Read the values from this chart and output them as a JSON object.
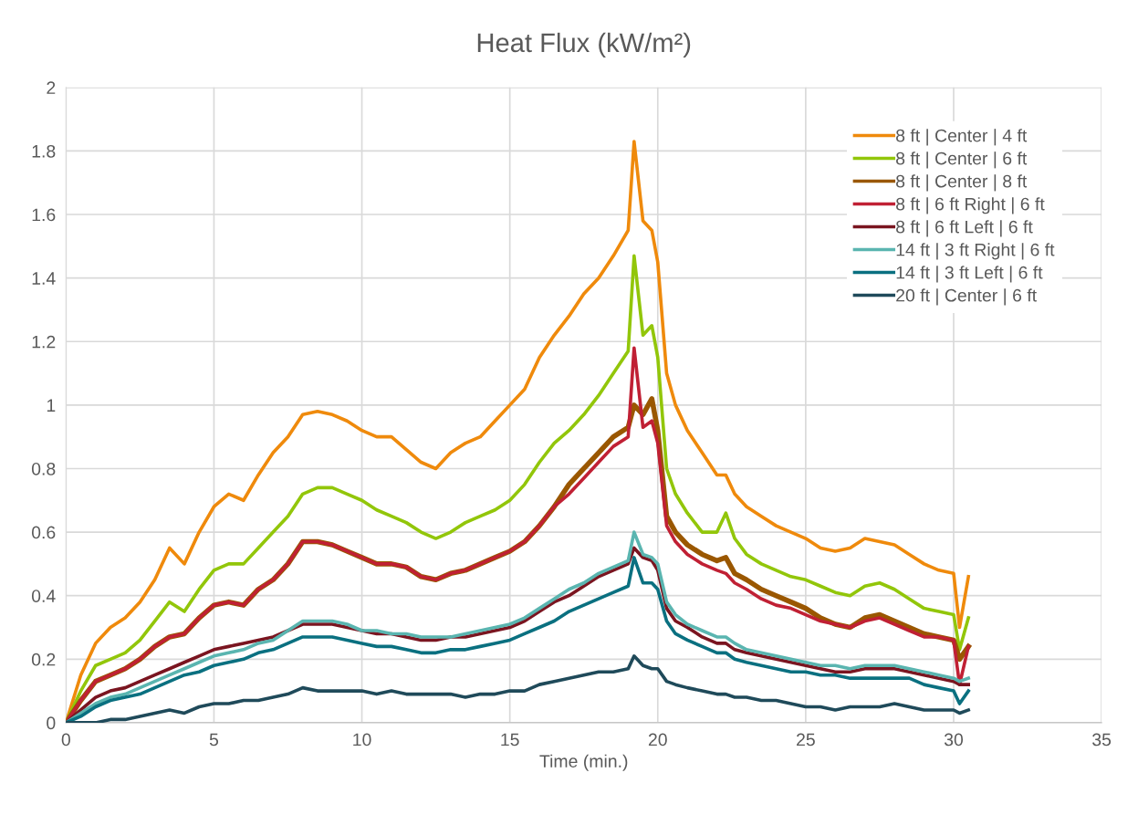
{
  "chart_data": {
    "type": "line",
    "title": "Heat Flux (kW/m²)",
    "xlabel": "Time (min.)",
    "x": [
      0,
      0.5,
      1,
      1.5,
      2,
      2.5,
      3,
      3.5,
      4,
      4.5,
      5,
      5.5,
      6,
      6.5,
      7,
      7.5,
      8,
      8.5,
      9,
      9.5,
      10,
      10.5,
      11,
      11.5,
      12,
      12.5,
      13,
      13.5,
      14,
      14.5,
      15,
      15.5,
      16,
      16.5,
      17,
      17.5,
      18,
      18.5,
      19,
      19.2,
      19.5,
      19.8,
      20,
      20.3,
      20.6,
      21,
      21.5,
      22,
      22.3,
      22.6,
      23,
      23.5,
      24,
      24.5,
      25,
      25.5,
      26,
      26.5,
      27,
      27.5,
      28,
      28.5,
      29,
      29.5,
      30,
      30.2,
      30.5
    ],
    "series": [
      {
        "name": "8 ft | Center | 4 ft",
        "color": "#ef8a0c",
        "values": [
          0,
          0.15,
          0.25,
          0.3,
          0.33,
          0.38,
          0.45,
          0.55,
          0.5,
          0.6,
          0.68,
          0.72,
          0.7,
          0.78,
          0.85,
          0.9,
          0.97,
          0.98,
          0.97,
          0.95,
          0.92,
          0.9,
          0.9,
          0.86,
          0.82,
          0.8,
          0.85,
          0.88,
          0.9,
          0.95,
          1.0,
          1.05,
          1.15,
          1.22,
          1.28,
          1.35,
          1.4,
          1.47,
          1.55,
          1.83,
          1.58,
          1.55,
          1.45,
          1.1,
          1.0,
          0.92,
          0.85,
          0.78,
          0.78,
          0.72,
          0.68,
          0.65,
          0.62,
          0.6,
          0.58,
          0.55,
          0.54,
          0.55,
          0.58,
          0.57,
          0.56,
          0.53,
          0.5,
          0.48,
          0.47,
          0.3,
          0.46
        ]
      },
      {
        "name": "8 ft | Center | 6 ft",
        "color": "#92c60a",
        "values": [
          0,
          0.1,
          0.18,
          0.2,
          0.22,
          0.26,
          0.32,
          0.38,
          0.35,
          0.42,
          0.48,
          0.5,
          0.5,
          0.55,
          0.6,
          0.65,
          0.72,
          0.74,
          0.74,
          0.72,
          0.7,
          0.67,
          0.65,
          0.63,
          0.6,
          0.58,
          0.6,
          0.63,
          0.65,
          0.67,
          0.7,
          0.75,
          0.82,
          0.88,
          0.92,
          0.97,
          1.03,
          1.1,
          1.17,
          1.47,
          1.22,
          1.25,
          1.15,
          0.8,
          0.72,
          0.66,
          0.6,
          0.6,
          0.66,
          0.58,
          0.53,
          0.5,
          0.48,
          0.46,
          0.45,
          0.43,
          0.41,
          0.4,
          0.43,
          0.44,
          0.42,
          0.39,
          0.36,
          0.35,
          0.34,
          0.23,
          0.33
        ]
      },
      {
        "name": "8 ft | Center | 8 ft",
        "color": "#9a5700",
        "values": [
          0,
          0.07,
          0.13,
          0.15,
          0.17,
          0.2,
          0.24,
          0.27,
          0.28,
          0.33,
          0.37,
          0.38,
          0.37,
          0.42,
          0.45,
          0.5,
          0.57,
          0.57,
          0.56,
          0.54,
          0.52,
          0.5,
          0.5,
          0.49,
          0.46,
          0.45,
          0.47,
          0.48,
          0.5,
          0.52,
          0.54,
          0.57,
          0.62,
          0.68,
          0.75,
          0.8,
          0.85,
          0.9,
          0.93,
          1.0,
          0.97,
          1.02,
          0.92,
          0.65,
          0.6,
          0.56,
          0.53,
          0.51,
          0.52,
          0.47,
          0.45,
          0.42,
          0.4,
          0.38,
          0.36,
          0.33,
          0.31,
          0.3,
          0.33,
          0.34,
          0.32,
          0.3,
          0.28,
          0.27,
          0.26,
          0.2,
          0.24
        ]
      },
      {
        "name": "8 ft | 6 ft Right | 6 ft",
        "color": "#c02034",
        "values": [
          0,
          0.07,
          0.13,
          0.15,
          0.17,
          0.2,
          0.24,
          0.27,
          0.28,
          0.33,
          0.37,
          0.38,
          0.37,
          0.42,
          0.45,
          0.5,
          0.57,
          0.57,
          0.56,
          0.54,
          0.52,
          0.5,
          0.5,
          0.49,
          0.46,
          0.45,
          0.47,
          0.48,
          0.5,
          0.52,
          0.54,
          0.57,
          0.62,
          0.68,
          0.72,
          0.77,
          0.82,
          0.87,
          0.9,
          1.18,
          0.93,
          0.95,
          0.88,
          0.62,
          0.57,
          0.53,
          0.5,
          0.48,
          0.47,
          0.44,
          0.42,
          0.39,
          0.37,
          0.36,
          0.34,
          0.32,
          0.31,
          0.3,
          0.32,
          0.33,
          0.31,
          0.29,
          0.27,
          0.27,
          0.26,
          0.12,
          0.24
        ]
      },
      {
        "name": "8 ft | 6 ft Left | 6 ft",
        "color": "#7a1520",
        "values": [
          0,
          0.04,
          0.08,
          0.1,
          0.11,
          0.13,
          0.15,
          0.17,
          0.19,
          0.21,
          0.23,
          0.24,
          0.25,
          0.26,
          0.27,
          0.29,
          0.31,
          0.31,
          0.31,
          0.3,
          0.29,
          0.28,
          0.28,
          0.27,
          0.26,
          0.26,
          0.27,
          0.27,
          0.28,
          0.29,
          0.3,
          0.32,
          0.35,
          0.38,
          0.4,
          0.43,
          0.46,
          0.48,
          0.5,
          0.55,
          0.52,
          0.51,
          0.48,
          0.36,
          0.32,
          0.3,
          0.27,
          0.25,
          0.25,
          0.23,
          0.22,
          0.21,
          0.2,
          0.19,
          0.18,
          0.17,
          0.16,
          0.16,
          0.17,
          0.17,
          0.17,
          0.16,
          0.15,
          0.14,
          0.13,
          0.12,
          0.12
        ]
      },
      {
        "name": "14 ft | 3 ft Right | 6 ft",
        "color": "#5ab5b0",
        "values": [
          0,
          0.03,
          0.06,
          0.08,
          0.09,
          0.11,
          0.13,
          0.15,
          0.17,
          0.19,
          0.21,
          0.22,
          0.23,
          0.25,
          0.26,
          0.29,
          0.32,
          0.32,
          0.32,
          0.31,
          0.29,
          0.29,
          0.28,
          0.28,
          0.27,
          0.27,
          0.27,
          0.28,
          0.29,
          0.3,
          0.31,
          0.33,
          0.36,
          0.39,
          0.42,
          0.44,
          0.47,
          0.49,
          0.51,
          0.6,
          0.53,
          0.52,
          0.5,
          0.38,
          0.34,
          0.31,
          0.29,
          0.27,
          0.27,
          0.25,
          0.23,
          0.22,
          0.21,
          0.2,
          0.19,
          0.18,
          0.18,
          0.17,
          0.18,
          0.18,
          0.18,
          0.17,
          0.16,
          0.15,
          0.14,
          0.13,
          0.14
        ]
      },
      {
        "name": "14 ft | 3 ft Left | 6 ft",
        "color": "#0a7080",
        "values": [
          0,
          0.02,
          0.05,
          0.07,
          0.08,
          0.09,
          0.11,
          0.13,
          0.15,
          0.16,
          0.18,
          0.19,
          0.2,
          0.22,
          0.23,
          0.25,
          0.27,
          0.27,
          0.27,
          0.26,
          0.25,
          0.24,
          0.24,
          0.23,
          0.22,
          0.22,
          0.23,
          0.23,
          0.24,
          0.25,
          0.26,
          0.28,
          0.3,
          0.32,
          0.35,
          0.37,
          0.39,
          0.41,
          0.43,
          0.52,
          0.44,
          0.44,
          0.42,
          0.32,
          0.28,
          0.26,
          0.24,
          0.22,
          0.22,
          0.2,
          0.19,
          0.18,
          0.17,
          0.16,
          0.16,
          0.15,
          0.15,
          0.14,
          0.14,
          0.14,
          0.14,
          0.14,
          0.12,
          0.11,
          0.1,
          0.06,
          0.1
        ]
      },
      {
        "name": "20 ft | Center | 6 ft",
        "color": "#1f4a5a",
        "values": [
          0,
          0,
          0,
          0.01,
          0.01,
          0.02,
          0.03,
          0.04,
          0.03,
          0.05,
          0.06,
          0.06,
          0.07,
          0.07,
          0.08,
          0.09,
          0.11,
          0.1,
          0.1,
          0.1,
          0.1,
          0.09,
          0.1,
          0.09,
          0.09,
          0.09,
          0.09,
          0.08,
          0.09,
          0.09,
          0.1,
          0.1,
          0.12,
          0.13,
          0.14,
          0.15,
          0.16,
          0.16,
          0.17,
          0.21,
          0.18,
          0.17,
          0.17,
          0.13,
          0.12,
          0.11,
          0.1,
          0.09,
          0.09,
          0.08,
          0.08,
          0.07,
          0.07,
          0.06,
          0.05,
          0.05,
          0.04,
          0.05,
          0.05,
          0.05,
          0.06,
          0.05,
          0.04,
          0.04,
          0.04,
          0.03,
          0.04
        ]
      }
    ],
    "xlim": [
      0,
      35
    ],
    "xticks": [
      0,
      5,
      10,
      15,
      20,
      25,
      30,
      35
    ],
    "ylim": [
      0,
      2
    ],
    "yticks": [
      0,
      0.2,
      0.4,
      0.6,
      0.8,
      1,
      1.2,
      1.4,
      1.6,
      1.8,
      2
    ],
    "grid": true,
    "legend": "top right",
    "line_style": "solid",
    "marker": "none"
  }
}
